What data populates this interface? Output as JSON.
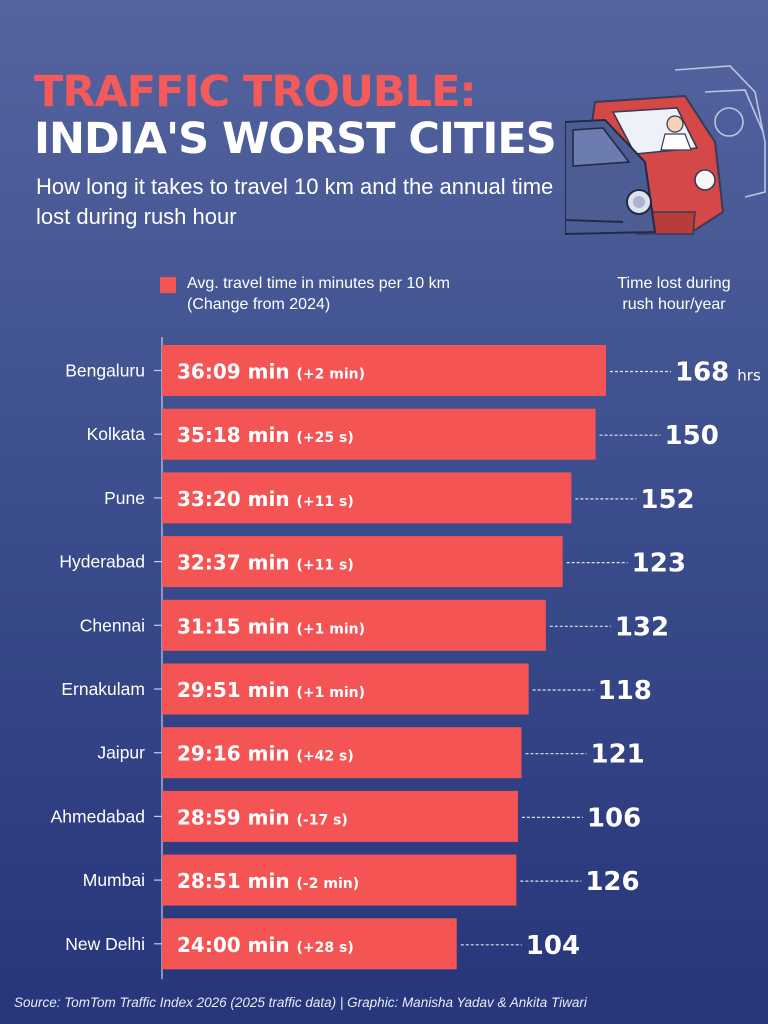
{
  "header": {
    "title_line1": "TRAFFIC TROUBLE:",
    "title_line2": "INDIA'S WORST CITIES",
    "subtitle": "How long it takes to travel 10 km and the annual time lost during rush hour"
  },
  "legend": {
    "bar_label": "Avg. travel time in minutes per 10 km (Change from 2024)",
    "right_label": "Time lost during rush hour/year",
    "hours_unit": "hrs"
  },
  "colors": {
    "title_accent": "#f45a5a",
    "bar": "#f45454",
    "background_top": "#55649f",
    "background_bottom": "#27357a"
  },
  "chart_data": {
    "type": "bar",
    "orientation": "horizontal",
    "categories": [
      "Bengaluru",
      "Kolkata",
      "Pune",
      "Hyderabad",
      "Chennai",
      "Ernakulam",
      "Jaipur",
      "Ahmedabad",
      "Mumbai",
      "New Delhi"
    ],
    "series": [
      {
        "name": "Avg. travel time in minutes per 10 km",
        "values": [
          36.15,
          35.3,
          33.33,
          32.62,
          31.25,
          29.85,
          29.27,
          28.98,
          28.85,
          24.0
        ],
        "labels": [
          "36:09 min",
          "35:18 min",
          "33:20 min",
          "32:37 min",
          "31:15 min",
          "29:51 min",
          "29:16 min",
          "28:59 min",
          "28:51 min",
          "24:00 min"
        ],
        "changes": [
          "(+2 min)",
          "(+25 s)",
          "(+11 s)",
          "(+11 s)",
          "(+1 min)",
          "(+1 min)",
          "(+42 s)",
          "(-17 s)",
          "(-2 min)",
          "(+28 s)"
        ]
      },
      {
        "name": "Time lost during rush hour/year",
        "values": [
          168,
          150,
          152,
          123,
          132,
          118,
          121,
          106,
          126,
          104
        ]
      }
    ],
    "xlim": [
      0,
      36.15
    ]
  },
  "source": "Source: TomTom Traffic Index 2026 (2025 traffic data) | Graphic: Manisha Yadav & Ankita Tiwari"
}
